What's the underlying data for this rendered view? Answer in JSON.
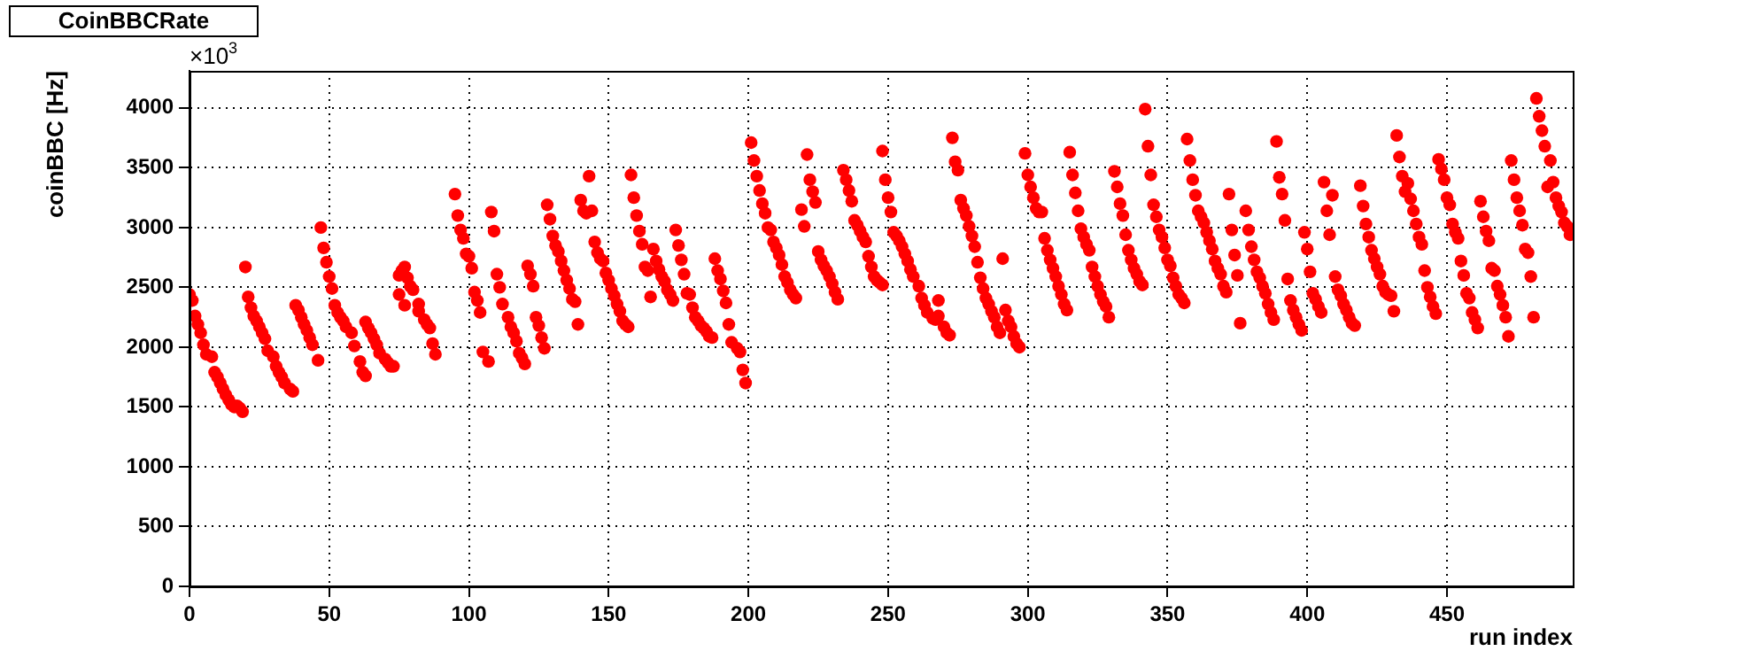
{
  "chart_data": {
    "type": "scatter",
    "title": "CoinBBCRate",
    "xlabel": "run index",
    "ylabel": "coinBBC [Hz]",
    "annotations": [
      "×10$^{3}$"
    ],
    "xlim": [
      0,
      495
    ],
    "xticks": [
      0,
      50,
      100,
      150,
      200,
      250,
      300,
      350,
      400,
      450
    ],
    "ylim": [
      0,
      4310
    ],
    "yticks": [
      0,
      500,
      1000,
      1500,
      2000,
      2500,
      3000,
      3500,
      4000
    ],
    "grid": true,
    "marker": "circle",
    "series": [
      {
        "color": "#ff0000",
        "x": [
          0,
          1,
          2,
          3,
          4,
          5,
          6,
          8,
          9,
          10,
          11,
          12,
          13,
          14,
          15,
          16,
          17,
          18,
          19,
          20,
          21,
          22,
          23,
          24,
          25,
          26,
          27,
          28,
          30,
          31,
          32,
          33,
          34,
          36,
          37,
          38,
          39,
          40,
          41,
          42,
          43,
          44,
          46,
          47,
          48,
          49,
          50,
          51,
          52,
          53,
          54,
          55,
          56,
          58,
          59,
          61,
          62,
          63,
          63,
          64,
          65,
          66,
          67,
          68,
          70,
          71,
          72,
          73,
          75,
          76,
          75,
          77,
          77,
          78,
          79,
          80,
          82,
          82,
          84,
          85,
          86,
          87,
          88,
          95,
          96,
          97,
          98,
          99,
          100,
          101,
          102,
          103,
          104,
          105,
          107,
          108,
          109,
          110,
          111,
          112,
          114,
          115,
          116,
          117,
          118,
          119,
          120,
          121,
          122,
          123,
          124,
          125,
          126,
          127,
          128,
          129,
          130,
          131,
          132,
          133,
          134,
          135,
          136,
          137,
          138,
          139,
          140,
          141,
          143,
          142,
          144,
          145,
          146,
          147,
          148,
          149,
          150,
          151,
          152,
          153,
          154,
          155,
          156,
          157,
          158,
          159,
          160,
          161,
          162,
          163,
          164,
          165,
          166,
          167,
          168,
          169,
          170,
          171,
          172,
          173,
          174,
          175,
          176,
          177,
          178,
          179,
          180,
          181,
          182,
          183,
          184,
          185,
          186,
          187,
          188,
          189,
          190,
          191,
          192,
          193,
          194,
          196,
          197,
          198,
          199,
          201,
          202,
          203,
          204,
          205,
          206,
          207,
          208,
          209,
          210,
          211,
          212,
          213,
          214,
          215,
          216,
          217,
          219,
          220,
          221,
          222,
          223,
          224,
          225,
          226,
          227,
          228,
          229,
          230,
          231,
          232,
          234,
          235,
          236,
          237,
          238,
          239,
          240,
          241,
          242,
          243,
          244,
          245,
          246,
          247,
          248,
          248,
          249,
          250,
          251,
          252,
          253,
          254,
          255,
          256,
          257,
          258,
          259,
          261,
          262,
          263,
          264,
          266,
          267,
          268,
          268,
          270,
          271,
          272,
          273,
          274,
          275,
          276,
          277,
          278,
          279,
          280,
          281,
          282,
          283,
          284,
          285,
          286,
          287,
          288,
          289,
          290,
          291,
          292,
          293,
          294,
          295,
          296,
          297,
          299,
          300,
          301,
          302,
          303,
          304,
          305,
          306,
          307,
          308,
          309,
          310,
          311,
          312,
          313,
          314,
          315,
          316,
          317,
          318,
          319,
          320,
          321,
          322,
          323,
          324,
          325,
          326,
          327,
          328,
          329,
          331,
          332,
          333,
          334,
          335,
          336,
          337,
          338,
          339,
          340,
          341,
          342,
          343,
          344,
          345,
          346,
          347,
          348,
          349,
          350,
          351,
          352,
          353,
          354,
          355,
          356,
          357,
          358,
          359,
          360,
          361,
          362,
          363,
          364,
          365,
          366,
          367,
          368,
          369,
          370,
          371,
          372,
          373,
          374,
          375,
          376,
          378,
          379,
          380,
          381,
          382,
          383,
          384,
          385,
          386,
          387,
          388,
          389,
          390,
          391,
          392,
          393,
          394,
          395,
          396,
          397,
          398,
          399,
          400,
          401,
          402,
          403,
          404,
          405,
          406,
          407,
          408,
          409,
          410,
          411,
          412,
          413,
          414,
          415,
          416,
          417,
          419,
          420,
          421,
          422,
          423,
          424,
          425,
          426,
          427,
          428,
          429,
          430,
          431,
          432,
          433,
          434,
          435,
          436,
          437,
          438,
          439,
          440,
          441,
          442,
          443,
          444,
          445,
          446,
          447,
          448,
          449,
          450,
          451,
          452,
          453,
          454,
          455,
          456,
          457,
          458,
          459,
          460,
          461,
          462,
          463,
          464,
          465,
          466,
          467,
          468,
          469,
          470,
          471,
          472,
          473,
          474,
          475,
          476,
          477,
          478,
          479,
          480,
          481,
          482,
          483,
          484,
          485,
          487,
          486,
          488,
          489,
          490,
          491,
          492,
          493,
          494
        ],
        "values": [
          2440,
          2390,
          2260,
          2190,
          2120,
          2020,
          1940,
          1920,
          1790,
          1750,
          1700,
          1650,
          1600,
          1560,
          1520,
          1500,
          1510,
          1490,
          1460,
          2670,
          2420,
          2330,
          2260,
          2220,
          2170,
          2120,
          2070,
          1970,
          1920,
          1840,
          1790,
          1750,
          1700,
          1650,
          1630,
          2350,
          2310,
          2250,
          2190,
          2140,
          2080,
          2020,
          1890,
          3000,
          2830,
          2710,
          2590,
          2490,
          2350,
          2290,
          2250,
          2220,
          2170,
          2120,
          2010,
          1880,
          1790,
          1760,
          2210,
          2160,
          2120,
          2070,
          2020,
          1950,
          1900,
          1870,
          1840,
          1840,
          2600,
          2640,
          2440,
          2350,
          2670,
          2580,
          2510,
          2480,
          2360,
          2300,
          2230,
          2190,
          2160,
          2030,
          1940,
          3280,
          3100,
          2980,
          2910,
          2780,
          2760,
          2660,
          2460,
          2390,
          2290,
          1960,
          1880,
          3130,
          2970,
          2610,
          2500,
          2360,
          2250,
          2170,
          2120,
          2050,
          1950,
          1910,
          1860,
          2680,
          2610,
          2510,
          2250,
          2180,
          2080,
          1990,
          3190,
          3070,
          2930,
          2850,
          2800,
          2720,
          2640,
          2560,
          2490,
          2400,
          2380,
          2190,
          3230,
          3140,
          3430,
          3120,
          3140,
          2880,
          2790,
          2740,
          2720,
          2620,
          2560,
          2490,
          2430,
          2360,
          2300,
          2220,
          2190,
          2170,
          3440,
          3250,
          3100,
          2970,
          2860,
          2670,
          2640,
          2420,
          2820,
          2720,
          2650,
          2590,
          2550,
          2480,
          2440,
          2390,
          2980,
          2850,
          2730,
          2610,
          2450,
          2440,
          2330,
          2250,
          2220,
          2180,
          2160,
          2130,
          2090,
          2080,
          2740,
          2640,
          2570,
          2470,
          2370,
          2190,
          2040,
          1990,
          1960,
          1810,
          1700,
          3710,
          3560,
          3430,
          3310,
          3200,
          3120,
          3000,
          2980,
          2880,
          2830,
          2770,
          2690,
          2590,
          2540,
          2480,
          2440,
          2410,
          3150,
          3010,
          3610,
          3400,
          3300,
          3210,
          2800,
          2730,
          2680,
          2640,
          2590,
          2530,
          2460,
          2400,
          3480,
          3400,
          3310,
          3220,
          3060,
          3020,
          2970,
          2920,
          2880,
          2760,
          2670,
          2590,
          2560,
          2540,
          2520,
          3640,
          3400,
          3250,
          3130,
          2960,
          2930,
          2890,
          2840,
          2780,
          2720,
          2650,
          2590,
          2510,
          2410,
          2350,
          2290,
          2240,
          2230,
          2390,
          2260,
          2170,
          2120,
          2100,
          3750,
          3550,
          3480,
          3230,
          3160,
          3100,
          3010,
          2930,
          2840,
          2710,
          2580,
          2490,
          2410,
          2360,
          2300,
          2250,
          2170,
          2120,
          2740,
          2310,
          2220,
          2170,
          2090,
          2030,
          2000,
          3620,
          3440,
          3340,
          3250,
          3160,
          3130,
          3130,
          2910,
          2810,
          2730,
          2660,
          2590,
          2510,
          2440,
          2360,
          2310,
          3630,
          3440,
          3290,
          3140,
          2990,
          2920,
          2860,
          2810,
          2670,
          2590,
          2510,
          2440,
          2380,
          2340,
          2250,
          3470,
          3340,
          3200,
          3100,
          2940,
          2810,
          2730,
          2660,
          2610,
          2550,
          2520,
          3990,
          3680,
          3440,
          3190,
          3090,
          2980,
          2920,
          2830,
          2730,
          2680,
          2580,
          2510,
          2440,
          2410,
          2370,
          3740,
          3560,
          3400,
          3270,
          3140,
          3090,
          3040,
          2960,
          2890,
          2820,
          2720,
          2660,
          2610,
          2510,
          2460,
          3280,
          2980,
          2770,
          2600,
          2200,
          3140,
          2980,
          2840,
          2730,
          2630,
          2580,
          2510,
          2450,
          2360,
          2290,
          2230,
          3720,
          3420,
          3280,
          3060,
          2570,
          2390,
          2310,
          2250,
          2190,
          2140,
          2960,
          2820,
          2630,
          2450,
          2400,
          2340,
          2290,
          3380,
          3140,
          2940,
          3270,
          2590,
          2480,
          2430,
          2360,
          2310,
          2250,
          2200,
          2180,
          3350,
          3180,
          3030,
          2920,
          2810,
          2740,
          2670,
          2610,
          2510,
          2460,
          2440,
          2430,
          2300,
          3770,
          3590,
          3430,
          3300,
          3370,
          3240,
          3140,
          3030,
          2920,
          2860,
          2640,
          2500,
          2420,
          2340,
          2280,
          3570,
          3490,
          3400,
          3250,
          3190,
          3030,
          2960,
          2910,
          2720,
          2600,
          2450,
          2410,
          2290,
          2230,
          2160,
          3220,
          3090,
          2970,
          2890,
          2660,
          2640,
          2510,
          2440,
          2350,
          2250,
          2090,
          3560,
          3400,
          3250,
          3140,
          3020,
          2820,
          2790,
          2590,
          2250,
          4080,
          3930,
          3810,
          3680,
          3560,
          3340,
          3380,
          3250,
          3180,
          3130,
          3040,
          3010,
          2940
        ]
      }
    ]
  }
}
